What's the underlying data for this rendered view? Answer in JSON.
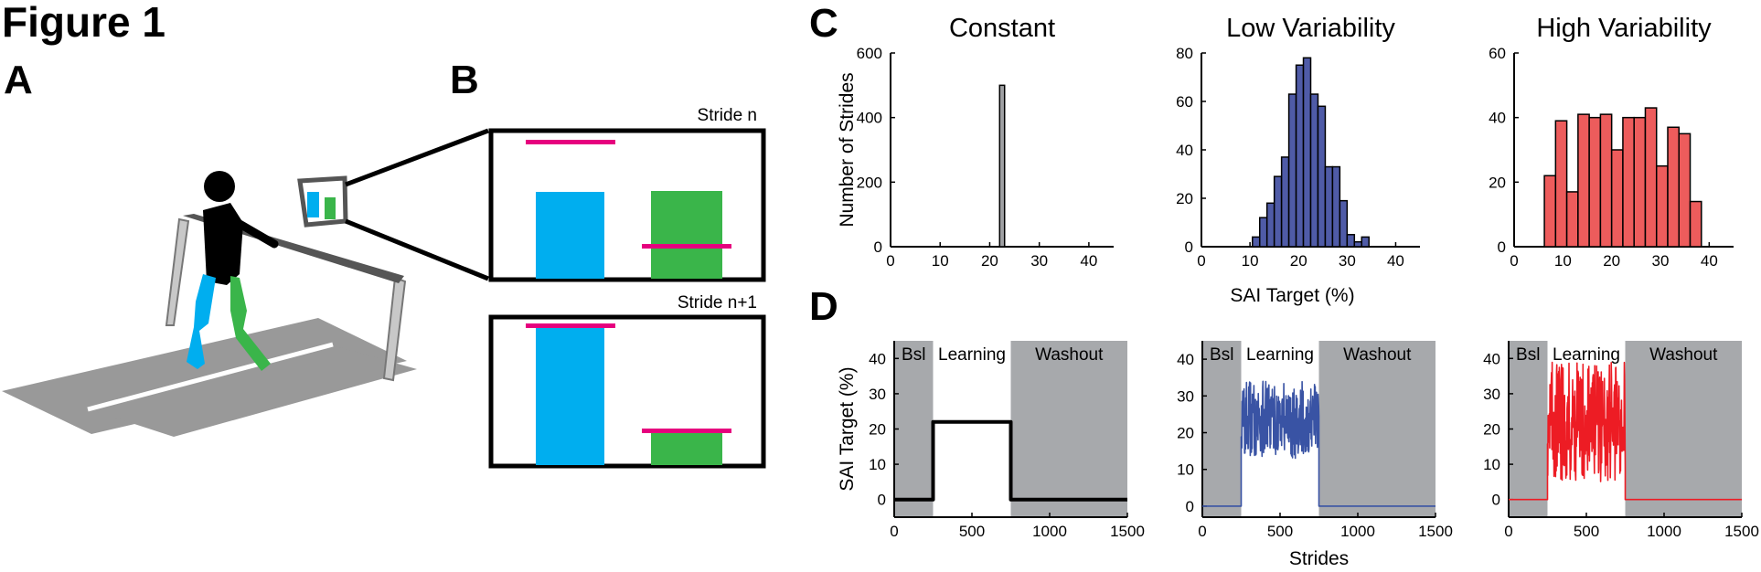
{
  "figure_title": "Figure 1",
  "panels": {
    "a": "A",
    "b": "B",
    "c": "C",
    "d": "D"
  },
  "panel_b": {
    "stride_n_label": "Stride n",
    "stride_n1_label": "Stride n+1"
  },
  "colors": {
    "left_leg": "#00aeef",
    "right_leg": "#3ab54a",
    "target": "#e6007e",
    "constant": "#a0a1a4",
    "low": "#4f5ba7",
    "high": "#ed5c5c",
    "shade": "#a7a9ac",
    "treadmill": "#999999"
  },
  "chart_data": [
    {
      "type": "bar",
      "title": "Constant",
      "ylabel": "Number of Strides",
      "xlim": [
        0,
        45
      ],
      "ylim": [
        0,
        600
      ],
      "xticks": [
        0,
        10,
        20,
        30,
        40
      ],
      "yticks": [
        0,
        200,
        400,
        600
      ],
      "bin_width": 1,
      "bins": [
        {
          "x0": 22,
          "count": 500
        }
      ]
    },
    {
      "type": "bar",
      "title": "Low Variability",
      "xlabel": "SAI Target (%)",
      "xlim": [
        0,
        45
      ],
      "ylim": [
        0,
        80
      ],
      "xticks": [
        0,
        10,
        20,
        30,
        40
      ],
      "yticks": [
        0,
        20,
        40,
        60,
        80
      ],
      "bin_width": 1.5,
      "bins": [
        {
          "x0": 10.5,
          "count": 4
        },
        {
          "x0": 12,
          "count": 12
        },
        {
          "x0": 13.5,
          "count": 18
        },
        {
          "x0": 15,
          "count": 29
        },
        {
          "x0": 16.5,
          "count": 37
        },
        {
          "x0": 18,
          "count": 63
        },
        {
          "x0": 19.5,
          "count": 75
        },
        {
          "x0": 21,
          "count": 78
        },
        {
          "x0": 22.5,
          "count": 63
        },
        {
          "x0": 24,
          "count": 58
        },
        {
          "x0": 25.5,
          "count": 33
        },
        {
          "x0": 27,
          "count": 33
        },
        {
          "x0": 28.5,
          "count": 19
        },
        {
          "x0": 30,
          "count": 5
        },
        {
          "x0": 31.5,
          "count": 2
        },
        {
          "x0": 33,
          "count": 4
        }
      ]
    },
    {
      "type": "bar",
      "title": "High Variability",
      "xlim": [
        0,
        45
      ],
      "ylim": [
        0,
        60
      ],
      "xticks": [
        0,
        10,
        20,
        30,
        40
      ],
      "yticks": [
        0,
        20,
        40,
        60
      ],
      "bin_width": 2.3,
      "bins": [
        {
          "x0": 6.2,
          "count": 22
        },
        {
          "x0": 8.5,
          "count": 39
        },
        {
          "x0": 10.8,
          "count": 17
        },
        {
          "x0": 13.1,
          "count": 41
        },
        {
          "x0": 15.4,
          "count": 40
        },
        {
          "x0": 17.7,
          "count": 41
        },
        {
          "x0": 20.0,
          "count": 30
        },
        {
          "x0": 22.3,
          "count": 40
        },
        {
          "x0": 24.6,
          "count": 40
        },
        {
          "x0": 26.9,
          "count": 43
        },
        {
          "x0": 29.2,
          "count": 25
        },
        {
          "x0": 31.5,
          "count": 37
        },
        {
          "x0": 33.8,
          "count": 35
        },
        {
          "x0": 36.1,
          "count": 14
        }
      ]
    },
    {
      "type": "line",
      "ylabel": "SAI Target (%)",
      "xlim": [
        0,
        1500
      ],
      "ylim": [
        -5,
        45
      ],
      "xticks": [
        0,
        500,
        1000,
        1500
      ],
      "yticks": [
        0,
        10,
        20,
        30,
        40
      ],
      "phases": [
        {
          "label": "Bsl",
          "x0": 0,
          "x1": 250,
          "shaded": true
        },
        {
          "label": "Learning",
          "x0": 250,
          "x1": 750,
          "shaded": false
        },
        {
          "label": "Washout",
          "x0": 750,
          "x1": 1500,
          "shaded": true
        }
      ],
      "series": [
        {
          "pattern": "constant",
          "baseline": 0,
          "level": 22,
          "start": 250,
          "end": 750
        }
      ]
    },
    {
      "type": "line",
      "xlabel": "Strides",
      "xlim": [
        0,
        1500
      ],
      "ylim": [
        -3,
        45
      ],
      "xticks": [
        0,
        500,
        1000,
        1500
      ],
      "yticks": [
        0,
        10,
        20,
        30,
        40
      ],
      "phases": [
        {
          "label": "Bsl",
          "x0": 0,
          "x1": 250,
          "shaded": true
        },
        {
          "label": "Learning",
          "x0": 250,
          "x1": 750,
          "shaded": false
        },
        {
          "label": "Washout",
          "x0": 750,
          "x1": 1500,
          "shaded": true
        }
      ],
      "series": [
        {
          "pattern": "random",
          "baseline": 0,
          "mean": 22,
          "min": 13,
          "max": 34,
          "start": 250,
          "end": 750
        }
      ]
    },
    {
      "type": "line",
      "xlim": [
        0,
        1500
      ],
      "ylim": [
        -5,
        45
      ],
      "xticks": [
        0,
        500,
        1000,
        1500
      ],
      "yticks": [
        0,
        10,
        20,
        30,
        40
      ],
      "phases": [
        {
          "label": "Bsl",
          "x0": 0,
          "x1": 250,
          "shaded": true
        },
        {
          "label": "Learning",
          "x0": 250,
          "x1": 750,
          "shaded": false
        },
        {
          "label": "Washout",
          "x0": 750,
          "x1": 1500,
          "shaded": true
        }
      ],
      "series": [
        {
          "pattern": "random",
          "baseline": 0,
          "mean": 22,
          "min": 5,
          "max": 39,
          "start": 250,
          "end": 750
        }
      ]
    }
  ]
}
